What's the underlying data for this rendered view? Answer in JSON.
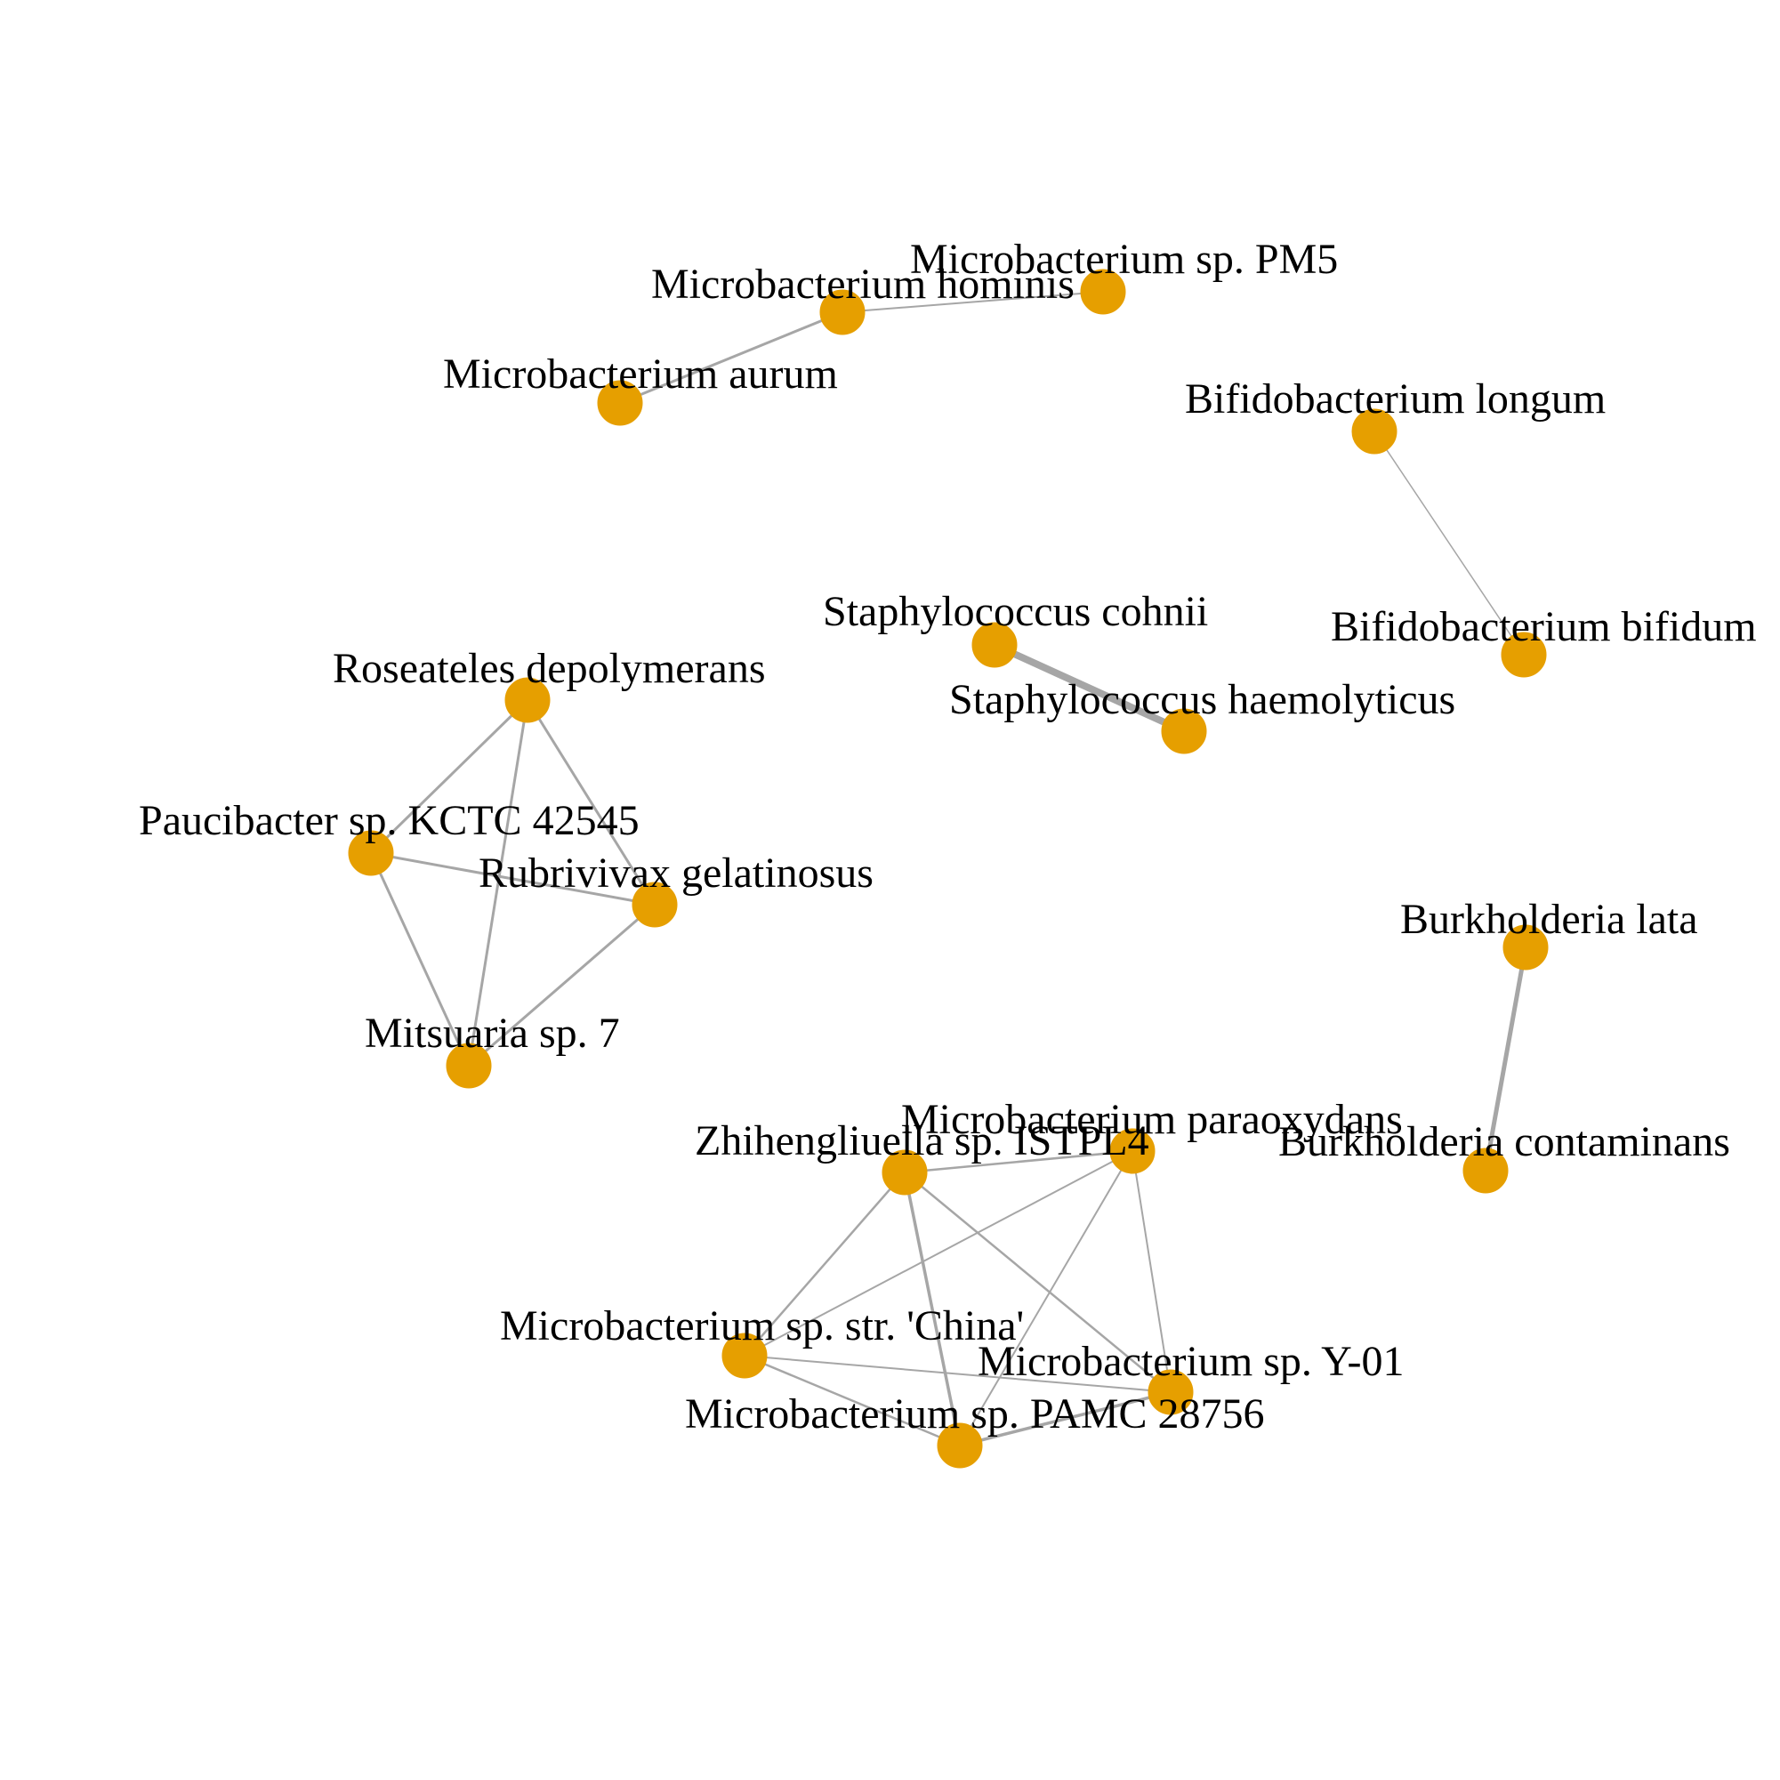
{
  "diagram": {
    "type": "network",
    "node_color": "#e69f00",
    "edge_color": "#a6a6a6",
    "background": "#ffffff",
    "nodes": [
      {
        "id": "microbacterium-sp-pm5",
        "label": "Microbacterium sp. PM5"
      },
      {
        "id": "microbacterium-hominis",
        "label": "Microbacterium hominis"
      },
      {
        "id": "microbacterium-aurum",
        "label": "Microbacterium aurum"
      },
      {
        "id": "bifidobacterium-longum",
        "label": "Bifidobacterium longum"
      },
      {
        "id": "bifidobacterium-bifidum",
        "label": "Bifidobacterium bifidum"
      },
      {
        "id": "staphylococcus-cohnii",
        "label": "Staphylococcus cohnii"
      },
      {
        "id": "staphylococcus-haemolyticus",
        "label": "Staphylococcus haemolyticus"
      },
      {
        "id": "roseateles-depolymerans",
        "label": "Roseateles depolymerans"
      },
      {
        "id": "paucibacter-sp-kctc-42545",
        "label": "Paucibacter sp. KCTC 42545"
      },
      {
        "id": "rubrivivax-gelatinosus",
        "label": "Rubrivivax gelatinosus"
      },
      {
        "id": "mitsuaria-sp-7",
        "label": "Mitsuaria sp. 7"
      },
      {
        "id": "burkholderia-lata",
        "label": "Burkholderia lata"
      },
      {
        "id": "burkholderia-contaminans",
        "label": "Burkholderia contaminans"
      },
      {
        "id": "microbacterium-paraoxydans",
        "label": "Microbacterium paraoxydans"
      },
      {
        "id": "zhihengliuella-sp-istpl4",
        "label": "Zhihengliuella sp. ISTPL4"
      },
      {
        "id": "microbacterium-sp-str-china",
        "label": "Microbacterium sp. str. 'China'"
      },
      {
        "id": "microbacterium-sp-y-01",
        "label": "Microbacterium sp. Y-01"
      },
      {
        "id": "microbacterium-sp-pamc-28756",
        "label": "Microbacterium sp. PAMC 28756"
      }
    ],
    "edges": [
      {
        "source": "microbacterium-hominis",
        "target": "microbacterium-sp-pm5",
        "weight": 2
      },
      {
        "source": "microbacterium-hominis",
        "target": "microbacterium-aurum",
        "weight": 3
      },
      {
        "source": "bifidobacterium-longum",
        "target": "bifidobacterium-bifidum",
        "weight": 1.5
      },
      {
        "source": "staphylococcus-cohnii",
        "target": "staphylococcus-haemolyticus",
        "weight": 8
      },
      {
        "source": "roseateles-depolymerans",
        "target": "paucibacter-sp-kctc-42545",
        "weight": 3
      },
      {
        "source": "roseateles-depolymerans",
        "target": "rubrivivax-gelatinosus",
        "weight": 3
      },
      {
        "source": "roseateles-depolymerans",
        "target": "mitsuaria-sp-7",
        "weight": 3
      },
      {
        "source": "paucibacter-sp-kctc-42545",
        "target": "rubrivivax-gelatinosus",
        "weight": 3
      },
      {
        "source": "paucibacter-sp-kctc-42545",
        "target": "mitsuaria-sp-7",
        "weight": 3
      },
      {
        "source": "rubrivivax-gelatinosus",
        "target": "mitsuaria-sp-7",
        "weight": 3
      },
      {
        "source": "burkholderia-lata",
        "target": "burkholderia-contaminans",
        "weight": 5
      },
      {
        "source": "zhihengliuella-sp-istpl4",
        "target": "microbacterium-paraoxydans",
        "weight": 2.5
      },
      {
        "source": "zhihengliuella-sp-istpl4",
        "target": "microbacterium-sp-str-china",
        "weight": 2.5
      },
      {
        "source": "zhihengliuella-sp-istpl4",
        "target": "microbacterium-sp-y-01",
        "weight": 2.5
      },
      {
        "source": "zhihengliuella-sp-istpl4",
        "target": "microbacterium-sp-pamc-28756",
        "weight": 3.5
      },
      {
        "source": "microbacterium-paraoxydans",
        "target": "microbacterium-sp-str-china",
        "weight": 2
      },
      {
        "source": "microbacterium-paraoxydans",
        "target": "microbacterium-sp-y-01",
        "weight": 2
      },
      {
        "source": "microbacterium-paraoxydans",
        "target": "microbacterium-sp-pamc-28756",
        "weight": 2
      },
      {
        "source": "microbacterium-sp-str-china",
        "target": "microbacterium-sp-y-01",
        "weight": 2
      },
      {
        "source": "microbacterium-sp-str-china",
        "target": "microbacterium-sp-pamc-28756",
        "weight": 2.5
      },
      {
        "source": "microbacterium-sp-y-01",
        "target": "microbacterium-sp-pamc-28756",
        "weight": 3.5
      }
    ]
  }
}
